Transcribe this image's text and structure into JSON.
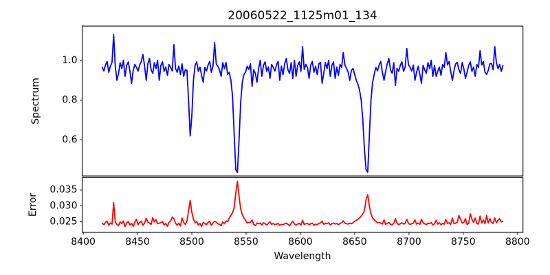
{
  "figure": {
    "title": "20060522_1125m01_134",
    "background": "#ffffff",
    "text_color": "#000000"
  },
  "chart_data": [
    {
      "type": "line",
      "panel": "spectrum",
      "title": "20060522_1125m01_134",
      "ylabel": "Spectrum",
      "line_color": "#0000ff",
      "legend": "none",
      "grid": false,
      "xlim": [
        8399,
        8805
      ],
      "ylim": [
        0.418,
        1.173
      ],
      "yticks": [
        1.0,
        0.8,
        0.6
      ],
      "ytick_labels": [
        "1.0",
        "0.8",
        "0.6"
      ],
      "absorption_lines_wavelength": [
        8498,
        8542,
        8662
      ],
      "x_start": 8417.5,
      "x_step": 1.5,
      "y": [
        0.965,
        0.947,
        0.977,
        0.995,
        0.941,
        0.971,
        0.99,
        1.13,
        0.97,
        0.9,
        0.935,
        0.989,
        0.959,
        1.001,
        0.92,
        0.975,
        0.993,
        0.945,
        0.885,
        0.95,
        0.98,
        0.965,
        0.947,
        0.977,
        0.995,
        1.03,
        0.971,
        0.9,
        0.983,
        1.01,
        0.953,
        0.935,
        0.989,
        0.959,
        1.001,
        0.9,
        0.975,
        0.993,
        0.945,
        0.967,
        0.925,
        0.98,
        0.965,
        0.947,
        1.08,
        0.96,
        0.941,
        0.971,
        0.929,
        0.983,
        0.92,
        0.953,
        0.95,
        0.8,
        0.62,
        0.72,
        0.9,
        0.975,
        0.993,
        0.945,
        0.967,
        0.925,
        0.89,
        0.965,
        0.947,
        0.977,
        0.995,
        0.941,
        0.971,
        1.09,
        0.983,
        0.97,
        0.953,
        0.92,
        0.989,
        0.959,
        0.99,
        0.93,
        0.94,
        0.9,
        0.82,
        0.63,
        0.45,
        0.436,
        0.6,
        0.79,
        0.89,
        0.93,
        0.941,
        0.971,
        0.955,
        0.983,
        0.87,
        0.953,
        0.935,
        0.89,
        0.959,
        1.001,
        0.92,
        0.975,
        0.993,
        0.945,
        0.967,
        0.91,
        0.98,
        0.965,
        0.947,
        0.977,
        0.995,
        0.9,
        0.971,
        0.929,
        0.983,
        1.01,
        0.953,
        0.935,
        0.989,
        0.91,
        1.001,
        0.92,
        0.975,
        0.993,
        0.945,
        1.07,
        0.955,
        0.98,
        0.965,
        0.91,
        0.977,
        0.995,
        0.941,
        0.971,
        0.929,
        0.983,
        0.99,
        0.885,
        0.935,
        0.989,
        0.959,
        1.001,
        0.92,
        0.975,
        0.993,
        0.91,
        0.967,
        0.925,
        0.98,
        0.965,
        1.04,
        0.977,
        0.96,
        0.941,
        0.9,
        0.95,
        0.96,
        0.93,
        0.9,
        0.88,
        0.85,
        0.8,
        0.7,
        0.55,
        0.45,
        0.437,
        0.62,
        0.8,
        0.89,
        0.93,
        0.965,
        0.947,
        0.977,
        0.995,
        0.941,
        0.9,
        0.945,
        0.983,
        1.01,
        0.953,
        0.935,
        0.989,
        0.875,
        0.96,
        0.945,
        0.975,
        0.993,
        0.945,
        0.967,
        1.06,
        0.98,
        0.965,
        0.947,
        0.977,
        0.9,
        0.941,
        0.971,
        0.929,
        0.885,
        0.975,
        0.953,
        0.935,
        0.989,
        0.959,
        1.001,
        0.92,
        0.975,
        0.92,
        0.945,
        0.967,
        0.925,
        0.98,
        0.965,
        1.04,
        0.977,
        0.995,
        0.941,
        0.9,
        0.95,
        0.983,
        0.99,
        0.953,
        0.935,
        0.989,
        0.959,
        0.91,
        0.94,
        0.975,
        0.993,
        0.945,
        0.967,
        0.92,
        0.98,
        0.965,
        1.05,
        0.977,
        0.995,
        0.941,
        0.93,
        0.95,
        0.983,
        0.985,
        0.953,
        1.07,
        0.989,
        0.959,
        0.98,
        0.945,
        0.975
      ]
    },
    {
      "type": "line",
      "panel": "error",
      "ylabel": "Error",
      "xlabel": "Wavelength",
      "line_color": "#ff0000",
      "legend": "none",
      "grid": false,
      "xlim": [
        8399,
        8805
      ],
      "ylim": [
        0.0217,
        0.0388
      ],
      "yticks": [
        0.035,
        0.03,
        0.025
      ],
      "ytick_labels": [
        "0.035",
        "0.030",
        "0.025"
      ],
      "xticks": [
        8400,
        8450,
        8500,
        8550,
        8600,
        8650,
        8700,
        8750,
        8800
      ],
      "xtick_labels": [
        "8400",
        "8450",
        "8500",
        "8550",
        "8600",
        "8650",
        "8700",
        "8750",
        "8800"
      ],
      "x_start": 8417.5,
      "x_step": 1.5,
      "y": [
        0.0245,
        0.0241,
        0.0248,
        0.0252,
        0.0239,
        0.0246,
        0.0243,
        0.031,
        0.025,
        0.0242,
        0.0238,
        0.025,
        0.0244,
        0.0253,
        0.0235,
        0.0247,
        0.0251,
        0.024,
        0.0245,
        0.0236,
        0.0248,
        0.0258,
        0.0241,
        0.0248,
        0.0252,
        0.0239,
        0.0246,
        0.0261,
        0.0249,
        0.0246,
        0.0242,
        0.0263,
        0.025,
        0.0257,
        0.0244,
        0.0246,
        0.0247,
        0.0251,
        0.024,
        0.0245,
        0.0236,
        0.0248,
        0.0252,
        0.0265,
        0.0259,
        0.0246,
        0.0239,
        0.0246,
        0.0237,
        0.0262,
        0.0248,
        0.0242,
        0.0252,
        0.0285,
        0.0317,
        0.028,
        0.0258,
        0.0247,
        0.0251,
        0.024,
        0.0245,
        0.0236,
        0.0248,
        0.0245,
        0.0241,
        0.0248,
        0.0252,
        0.0239,
        0.0246,
        0.0252,
        0.0249,
        0.0244,
        0.0242,
        0.0238,
        0.025,
        0.0244,
        0.0253,
        0.025,
        0.0262,
        0.027,
        0.0278,
        0.0295,
        0.034,
        0.0377,
        0.033,
        0.029,
        0.0272,
        0.0262,
        0.0255,
        0.0246,
        0.0248,
        0.0249,
        0.0256,
        0.0242,
        0.0238,
        0.0246,
        0.0244,
        0.0246,
        0.024,
        0.0247,
        0.0244,
        0.024,
        0.0245,
        0.025,
        0.0242,
        0.0245,
        0.0241,
        0.0243,
        0.0245,
        0.0239,
        0.0242,
        0.0241,
        0.0244,
        0.0246,
        0.0242,
        0.0238,
        0.0245,
        0.0252,
        0.0244,
        0.024,
        0.0243,
        0.0245,
        0.024,
        0.0255,
        0.0242,
        0.0244,
        0.0245,
        0.0241,
        0.0244,
        0.0246,
        0.0239,
        0.0243,
        0.0241,
        0.0245,
        0.0247,
        0.0252,
        0.0242,
        0.0246,
        0.0244,
        0.0247,
        0.024,
        0.0244,
        0.0246,
        0.0243,
        0.0245,
        0.0241,
        0.0245,
        0.0247,
        0.0253,
        0.0246,
        0.0244,
        0.0243,
        0.0246,
        0.0244,
        0.0247,
        0.0252,
        0.0255,
        0.0258,
        0.0262,
        0.0268,
        0.0275,
        0.0285,
        0.032,
        0.0335,
        0.03,
        0.0275,
        0.0262,
        0.0256,
        0.0252,
        0.0247,
        0.0248,
        0.0246,
        0.0243,
        0.0256,
        0.0242,
        0.0245,
        0.0248,
        0.0242,
        0.0241,
        0.0245,
        0.026,
        0.0246,
        0.0241,
        0.0244,
        0.0247,
        0.0243,
        0.0245,
        0.0258,
        0.0245,
        0.0242,
        0.0244,
        0.0246,
        0.0256,
        0.0243,
        0.0246,
        0.0242,
        0.0258,
        0.0247,
        0.0244,
        0.0241,
        0.0246,
        0.0244,
        0.0248,
        0.024,
        0.0244,
        0.0255,
        0.0243,
        0.0247,
        0.0241,
        0.0245,
        0.0243,
        0.0257,
        0.0245,
        0.0247,
        0.0242,
        0.0262,
        0.0244,
        0.0246,
        0.0249,
        0.027,
        0.0258,
        0.0246,
        0.0248,
        0.026,
        0.0242,
        0.0245,
        0.0275,
        0.0258,
        0.0248,
        0.0262,
        0.0245,
        0.0243,
        0.0268,
        0.0246,
        0.0256,
        0.0244,
        0.027,
        0.0246,
        0.026,
        0.0248,
        0.0245,
        0.0262,
        0.0247,
        0.0255,
        0.026,
        0.025,
        0.0252
      ]
    }
  ]
}
